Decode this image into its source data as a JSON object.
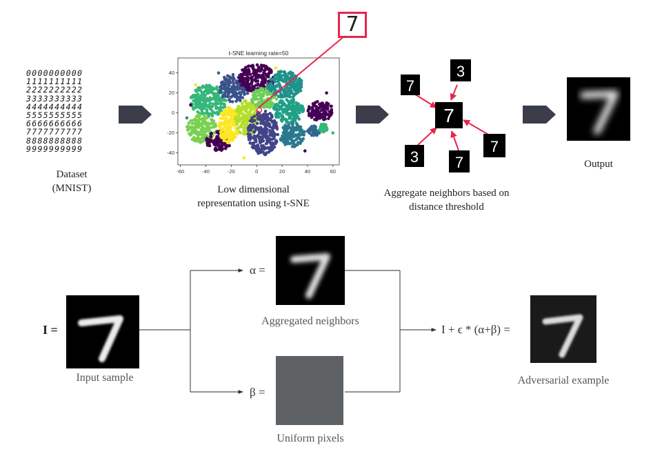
{
  "pipeline": {
    "dataset_caption_line1": "Dataset",
    "dataset_caption_line2": "(MNIST)",
    "mnist_rows": [
      "0000000000",
      "1111111111",
      "2222222222",
      "3333333333",
      "4444444444",
      "5555555555",
      "6666666666",
      "7777777777",
      "8888888888",
      "9999999999"
    ],
    "tsne_caption_line1": "Low dimensional",
    "tsne_caption_line2": "representation using t-SNE",
    "aggregate_caption_line1": "Aggregate neighbors based on",
    "aggregate_caption_line2": "distance threshold",
    "output_caption": "Output",
    "highlight_digit": "7",
    "neighbor_digits": [
      "7",
      "3",
      "7",
      "3",
      "7",
      "7"
    ]
  },
  "chart_data": {
    "type": "scatter",
    "title": "t-SNE learning rate=50",
    "xlabel": "",
    "ylabel": "",
    "xlim": [
      -62,
      65
    ],
    "ylim": [
      -52,
      55
    ],
    "xticks": [
      -60,
      -40,
      -20,
      0,
      20,
      40,
      60
    ],
    "yticks": [
      -40,
      -20,
      0,
      20,
      40
    ],
    "clusters": [
      {
        "cx": -38,
        "cy": 12,
        "rx": 14,
        "ry": 16,
        "color": "#35b779"
      },
      {
        "cx": -43,
        "cy": -16,
        "rx": 12,
        "ry": 14,
        "color": "#7ad151"
      },
      {
        "cx": -30,
        "cy": -28,
        "rx": 10,
        "ry": 10,
        "color": "#440154"
      },
      {
        "cx": -18,
        "cy": 25,
        "rx": 12,
        "ry": 14,
        "color": "#3b528b"
      },
      {
        "cx": -22,
        "cy": -12,
        "rx": 8,
        "ry": 18,
        "color": "#fde725"
      },
      {
        "cx": -8,
        "cy": -5,
        "rx": 9,
        "ry": 18,
        "color": "#b5de2b"
      },
      {
        "cx": 0,
        "cy": 35,
        "rx": 14,
        "ry": 14,
        "color": "#440154"
      },
      {
        "cx": 6,
        "cy": 15,
        "rx": 10,
        "ry": 11,
        "color": "#6ece58"
      },
      {
        "cx": 22,
        "cy": 28,
        "rx": 14,
        "ry": 14,
        "color": "#21918c"
      },
      {
        "cx": 5,
        "cy": -20,
        "rx": 12,
        "ry": 22,
        "color": "#414487"
      },
      {
        "cx": 25,
        "cy": 2,
        "rx": 12,
        "ry": 12,
        "color": "#1fa187"
      },
      {
        "cx": 28,
        "cy": -22,
        "rx": 10,
        "ry": 12,
        "color": "#2a788e"
      },
      {
        "cx": 50,
        "cy": 2,
        "rx": 10,
        "ry": 10,
        "color": "#440154"
      },
      {
        "cx": 45,
        "cy": -18,
        "rx": 5,
        "ry": 5,
        "color": "#31688e"
      },
      {
        "cx": 52,
        "cy": -15,
        "rx": 4,
        "ry": 4,
        "color": "#35b779"
      }
    ],
    "highlight_point": {
      "x": 2,
      "y": 3
    }
  },
  "formula": {
    "input_eq": "I =",
    "input_caption": "Input sample",
    "alpha_eq": "α =",
    "alpha_caption": "Aggregated neighbors",
    "beta_eq": "β =",
    "beta_caption": "Uniform pixels",
    "result_eq": "I + ϵ * (α+β) =",
    "result_caption": "Adversarial example"
  },
  "colors": {
    "arrow_block": "#3b3d4a",
    "highlight": "#e8254a",
    "uniform_gray": "#5d6163",
    "line": "#555555"
  }
}
